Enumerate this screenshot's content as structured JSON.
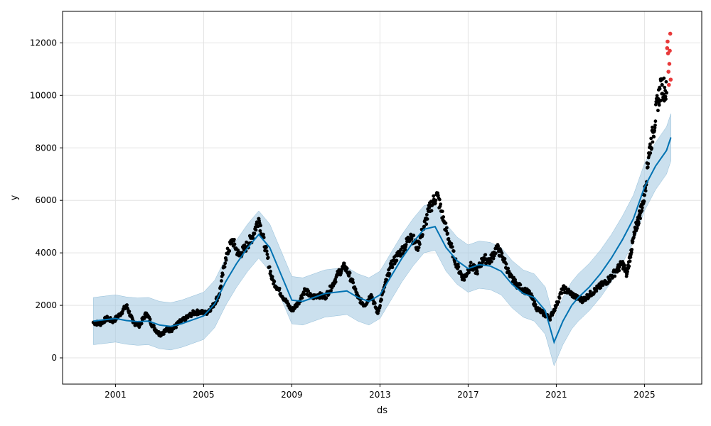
{
  "chart_data": {
    "type": "line",
    "title": "",
    "xlabel": "ds",
    "ylabel": "y",
    "xlim": [
      1998.6,
      2027.6
    ],
    "ylim": [
      -1000,
      13200
    ],
    "x_ticks": [
      2001,
      2005,
      2009,
      2013,
      2017,
      2021,
      2025
    ],
    "x_tick_labels": [
      "2001",
      "2005",
      "2009",
      "2013",
      "2017",
      "2021",
      "2025"
    ],
    "y_ticks": [
      0,
      2000,
      4000,
      6000,
      8000,
      10000,
      12000
    ],
    "y_tick_labels": [
      "0",
      "2000",
      "4000",
      "6000",
      "8000",
      "10000",
      "12000"
    ],
    "grid": true,
    "colors": {
      "forecast": "#0072B2",
      "interval": "#A9CCE3",
      "observed": "#000000",
      "outliers": "#E8393A"
    },
    "forecast": {
      "x": [
        2000.0,
        2000.5,
        2001.0,
        2001.5,
        2002.0,
        2002.5,
        2003.0,
        2003.5,
        2004.0,
        2004.5,
        2005.0,
        2005.5,
        2006.0,
        2006.5,
        2007.0,
        2007.5,
        2008.0,
        2008.5,
        2009.0,
        2009.5,
        2010.0,
        2010.5,
        2011.0,
        2011.5,
        2012.0,
        2012.5,
        2013.0,
        2013.5,
        2014.0,
        2014.5,
        2015.0,
        2015.5,
        2016.0,
        2016.5,
        2017.0,
        2017.5,
        2018.0,
        2018.5,
        2019.0,
        2019.5,
        2020.0,
        2020.5,
        2020.9,
        2021.3,
        2021.7,
        2022.0,
        2022.5,
        2023.0,
        2023.5,
        2024.0,
        2024.5,
        2025.0,
        2025.5,
        2026.0,
        2026.2
      ],
      "yhat": [
        1400,
        1450,
        1500,
        1420,
        1380,
        1400,
        1250,
        1200,
        1300,
        1450,
        1600,
        2050,
        2900,
        3600,
        4200,
        4700,
        4200,
        3200,
        2200,
        2150,
        2300,
        2450,
        2500,
        2550,
        2300,
        2150,
        2400,
        3100,
        3800,
        4400,
        4900,
        5000,
        4200,
        3700,
        3400,
        3550,
        3500,
        3300,
        2800,
        2450,
        2300,
        1800,
        600,
        1400,
        2000,
        2300,
        2700,
        3200,
        3800,
        4500,
        5300,
        6500,
        7300,
        7900,
        8400
      ],
      "band_half_width": 900
    },
    "observed": {
      "x": [
        2000.0,
        2000.3,
        2000.6,
        2000.9,
        2001.2,
        2001.5,
        2001.8,
        2002.1,
        2002.4,
        2002.7,
        2003.0,
        2003.3,
        2003.6,
        2003.9,
        2004.2,
        2004.5,
        2004.8,
        2005.1,
        2005.4,
        2005.7,
        2006.0,
        2006.3,
        2006.6,
        2006.9,
        2007.2,
        2007.5,
        2007.8,
        2008.1,
        2008.4,
        2008.7,
        2009.0,
        2009.3,
        2009.6,
        2009.9,
        2010.2,
        2010.5,
        2010.8,
        2011.1,
        2011.4,
        2011.7,
        2012.0,
        2012.3,
        2012.6,
        2012.9,
        2013.2,
        2013.5,
        2013.8,
        2014.1,
        2014.4,
        2014.7,
        2015.0,
        2015.3,
        2015.6,
        2015.9,
        2016.2,
        2016.5,
        2016.8,
        2017.1,
        2017.4,
        2017.7,
        2018.0,
        2018.3,
        2018.6,
        2018.9,
        2019.2,
        2019.5,
        2019.8,
        2020.1,
        2020.4,
        2020.7,
        2021.0,
        2021.3,
        2021.6,
        2021.9,
        2022.2,
        2022.5,
        2022.8,
        2023.1,
        2023.4,
        2023.7,
        2024.0,
        2024.2,
        2024.4,
        2024.6,
        2024.8,
        2025.0,
        2025.2,
        2025.4,
        2025.6,
        2025.8,
        2026.0
      ],
      "y": [
        1350,
        1300,
        1500,
        1400,
        1650,
        2000,
        1350,
        1250,
        1700,
        1200,
        900,
        1050,
        1100,
        1350,
        1500,
        1700,
        1750,
        1700,
        1950,
        2400,
        3800,
        4500,
        3900,
        4200,
        4600,
        5300,
        4200,
        3000,
        2600,
        2200,
        1800,
        2100,
        2600,
        2300,
        2400,
        2300,
        2700,
        3200,
        3500,
        3000,
        2300,
        2000,
        2400,
        1700,
        2700,
        3500,
        3900,
        4200,
        4700,
        4200,
        5000,
        5800,
        6200,
        5200,
        4300,
        3500,
        3000,
        3500,
        3300,
        3800,
        3700,
        4200,
        3800,
        3100,
        2800,
        2600,
        2450,
        1900,
        1700,
        1500,
        2000,
        2650,
        2500,
        2300,
        2200,
        2400,
        2600,
        2800,
        3000,
        3300,
        3600,
        3200,
        4100,
        4900,
        5500,
        6200,
        7800,
        8600,
        9800,
        10400,
        10100
      ]
    },
    "outliers": {
      "x": [
        2026.03,
        2026.05,
        2026.07,
        2026.09,
        2026.11,
        2026.13,
        2026.15,
        2026.17,
        2026.19
      ],
      "y": [
        11800,
        12050,
        11600,
        10900,
        10400,
        11200,
        11700,
        12350,
        10600
      ]
    }
  }
}
